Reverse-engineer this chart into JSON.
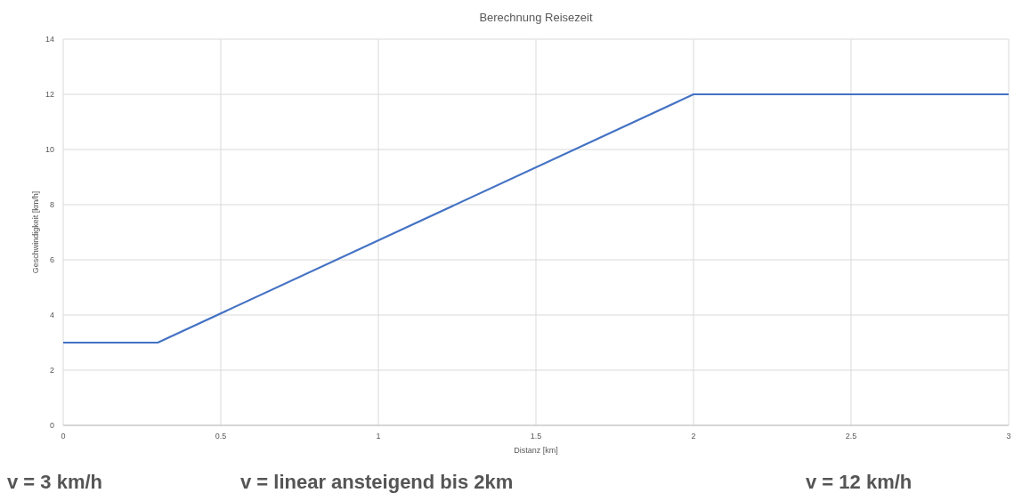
{
  "chart_data": {
    "type": "line",
    "title": "Berechnung Reisezeit",
    "xlabel": "Distanz [km]",
    "ylabel": "Geschwindigkeit [km/h]",
    "x": [
      0,
      0.3,
      2,
      3
    ],
    "series": [
      {
        "color": "#4472c4",
        "values": [
          3,
          3,
          12,
          12
        ]
      }
    ],
    "xlim": [
      0,
      3
    ],
    "xticks": [
      0,
      0.5,
      1,
      1.5,
      2,
      2.5,
      3
    ],
    "ylim": [
      0,
      14
    ],
    "yticks": [
      0,
      2,
      4,
      6,
      8,
      10,
      12,
      14
    ],
    "grid": true,
    "marker": "none",
    "line_style": "solid",
    "annotations": [
      "v = 3 km/h",
      "v = linear ansteigend bis 2km",
      "v = 12 km/h"
    ]
  }
}
